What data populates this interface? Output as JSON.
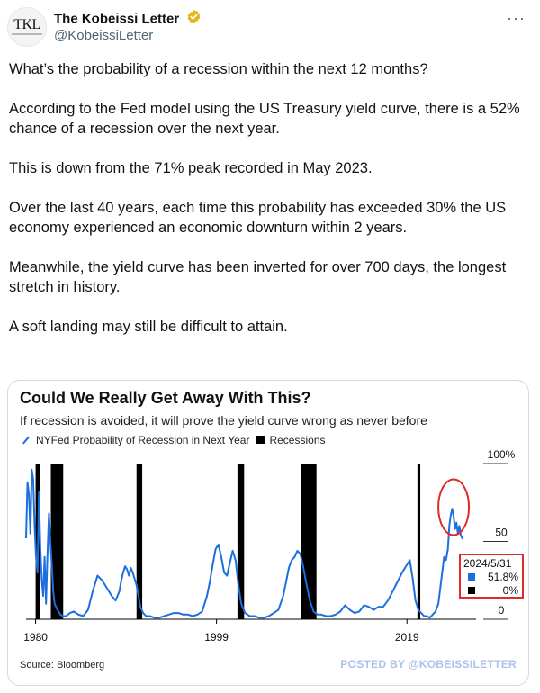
{
  "author": {
    "display_name": "The Kobeissi Letter",
    "handle": "@KobeissiLetter",
    "avatar_text": "TKL",
    "verified_color": "#e2b719"
  },
  "more_label": "···",
  "tweet": {
    "paragraphs": [
      "What’s the probability of a recession within the next 12 months?",
      "According to the Fed model using the US Treasury yield curve, there is a 52% chance of a recession over the next year.",
      "This is down from the 71% peak recorded in May 2023.",
      "Over the last 40 years, each time this probability has exceeded 30% the US economy experienced an economic downturn within 2 years.",
      "Meanwhile, the yield curve has been inverted for over 700 days, the longest stretch in history.",
      "A soft landing may still be difficult to attain."
    ]
  },
  "card": {
    "source": "Source: Bloomberg",
    "watermark": "POSTED BY @KOBEISSILETTER",
    "callout": {
      "date": "2024/5/31",
      "probability": "51.8%",
      "recession": "0%"
    }
  },
  "colors": {
    "line": "#1d6fe0",
    "recession": "#000000",
    "highlight": "#e02b2b"
  },
  "chart_data": {
    "type": "line",
    "title": "Could We Really Get Away With This?",
    "subtitle": "If recession is avoided, it will prove the yield curve wrong as never before",
    "legend": [
      "NYFed Probability of Recession in Next Year",
      "Recessions"
    ],
    "x_ticks": [
      "1980",
      "1999",
      "2019"
    ],
    "y_ticks": [
      "100%",
      "50",
      "0"
    ],
    "xlim": [
      1979,
      2025.5
    ],
    "ylim": [
      0,
      100
    ],
    "y_axis_side": "right",
    "recession_periods": [
      [
        1980.0,
        1980.5
      ],
      [
        1981.6,
        1982.9
      ],
      [
        1990.6,
        1991.2
      ],
      [
        2001.2,
        2001.9
      ],
      [
        2007.9,
        2009.5
      ],
      [
        2020.1,
        2020.4
      ]
    ],
    "series": [
      {
        "name": "NYFed Probability of Recession in Next Year",
        "x": [
          1979.0,
          1979.15,
          1979.3,
          1979.45,
          1979.6,
          1979.75,
          1979.9,
          1980.05,
          1980.2,
          1980.35,
          1980.5,
          1980.65,
          1980.8,
          1980.95,
          1981.1,
          1981.25,
          1981.4,
          1981.55,
          1981.7,
          1981.85,
          1982.0,
          1982.3,
          1982.6,
          1982.9,
          1983.2,
          1983.6,
          1984.0,
          1984.5,
          1985.0,
          1985.5,
          1986.0,
          1986.5,
          1987.0,
          1987.5,
          1988.0,
          1988.4,
          1988.8,
          1989.0,
          1989.2,
          1989.4,
          1989.6,
          1989.8,
          1990.0,
          1990.2,
          1990.4,
          1990.6,
          1990.8,
          1991.0,
          1991.3,
          1991.6,
          1992.0,
          1992.5,
          1993.0,
          1993.5,
          1994.0,
          1994.5,
          1995.0,
          1995.5,
          1996.0,
          1996.5,
          1997.0,
          1997.5,
          1998.0,
          1998.3,
          1998.6,
          1998.9,
          1999.2,
          1999.5,
          1999.8,
          2000.1,
          2000.4,
          2000.7,
          2001.0,
          2001.3,
          2001.6,
          2002.0,
          2002.5,
          2003.0,
          2003.5,
          2004.0,
          2004.5,
          2005.0,
          2005.5,
          2006.0,
          2006.3,
          2006.6,
          2006.9,
          2007.2,
          2007.5,
          2007.8,
          2008.1,
          2008.4,
          2008.8,
          2009.2,
          2009.6,
          2010.0,
          2010.5,
          2011.0,
          2011.5,
          2012.0,
          2012.5,
          2013.0,
          2013.5,
          2014.0,
          2014.5,
          2015.0,
          2015.5,
          2016.0,
          2016.5,
          2017.0,
          2017.5,
          2018.0,
          2018.5,
          2019.0,
          2019.3,
          2019.6,
          2019.9,
          2020.2,
          2020.5,
          2020.8,
          2021.1,
          2021.4,
          2021.7,
          2022.0,
          2022.3,
          2022.6,
          2022.9,
          2023.1,
          2023.3,
          2023.45,
          2023.6,
          2023.75,
          2023.9,
          2024.05,
          2024.2,
          2024.35,
          2024.5,
          2024.65,
          2024.8,
          2024.92
        ],
        "values": [
          52,
          88,
          80,
          55,
          96,
          90,
          60,
          40,
          30,
          82,
          45,
          25,
          15,
          40,
          10,
          42,
          68,
          50,
          35,
          18,
          10,
          6,
          3,
          2,
          2,
          4,
          5,
          3,
          2,
          6,
          18,
          28,
          25,
          20,
          15,
          12,
          18,
          25,
          30,
          34,
          32,
          28,
          33,
          30,
          26,
          22,
          15,
          8,
          4,
          2,
          2,
          1,
          1,
          2,
          3,
          4,
          4,
          3,
          3,
          2,
          3,
          5,
          15,
          24,
          35,
          45,
          48,
          40,
          30,
          28,
          36,
          44,
          38,
          22,
          10,
          4,
          2,
          2,
          1,
          1,
          2,
          4,
          6,
          15,
          24,
          33,
          38,
          40,
          44,
          42,
          34,
          24,
          12,
          5,
          3,
          3,
          2,
          2,
          3,
          5,
          9,
          6,
          4,
          5,
          9,
          8,
          6,
          8,
          8,
          12,
          18,
          24,
          30,
          35,
          38,
          26,
          12,
          6,
          4,
          2,
          2,
          1,
          3,
          5,
          10,
          25,
          40,
          38,
          45,
          60,
          67,
          71,
          66,
          58,
          62,
          55,
          60,
          54,
          52,
          51.8
        ]
      },
      {
        "name": "Recessions",
        "x": [
          1980.25,
          1982.25,
          1990.9,
          2001.55,
          2008.7,
          2020.25
        ],
        "values": [
          100,
          100,
          100,
          100,
          100,
          100
        ]
      }
    ]
  }
}
